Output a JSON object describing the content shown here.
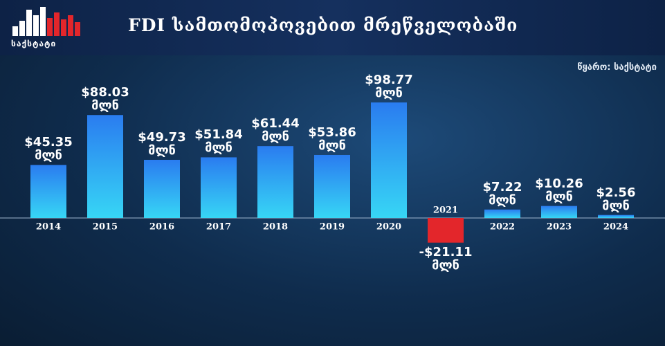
{
  "chart_data": {
    "type": "bar",
    "title": "FDI სამთომოპოვებით მრეწველობაში",
    "source": "წყარო: საქსტატი",
    "logo": "საქსტატი",
    "categories": [
      "2014",
      "2015",
      "2016",
      "2017",
      "2018",
      "2019",
      "2020",
      "2021",
      "2022",
      "2023",
      "2024"
    ],
    "values": [
      45.35,
      88.03,
      49.73,
      51.84,
      61.44,
      53.86,
      98.77,
      -21.11,
      7.22,
      10.26,
      2.56
    ],
    "value_labels": [
      "$45.35 მლნ",
      "$88.03 მლნ",
      "$49.73 მლნ",
      "$51.84 მლნ",
      "$61.44 მლნ",
      "$53.86 მლნ",
      "$98.77 მლნ",
      "-$21.11 მლნ",
      "$7.22 მლნ",
      "$10.26 მლნ",
      "$2.56 მლნ"
    ],
    "color": "#2a8ff2",
    "negative_color": "#e3262b",
    "ylim": [
      -40,
      120
    ]
  }
}
